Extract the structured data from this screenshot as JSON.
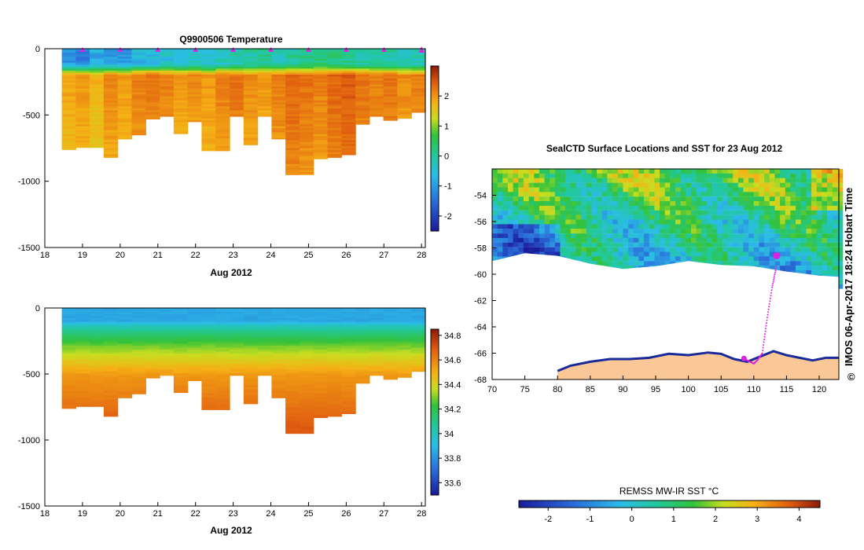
{
  "chart_data": [
    {
      "id": "temperature",
      "type": "heatmap",
      "title": "Q9900506  Temperature",
      "xlabel": "Aug 2012",
      "ylabel": "",
      "xlim": [
        18,
        28.1
      ],
      "ylim": [
        0,
        -1500
      ],
      "x_ticks": [
        "18",
        "19",
        "20",
        "21",
        "22",
        "23",
        "24",
        "25",
        "26",
        "27",
        "28"
      ],
      "y_ticks": [
        "0",
        "-500",
        "-1000",
        "-1500"
      ],
      "colorbar": {
        "range": [
          -2.5,
          3
        ],
        "ticks": [
          "-2",
          "-1",
          "0",
          "1",
          "2"
        ]
      },
      "profile_markers_x": [
        19,
        20,
        21,
        22,
        23,
        24,
        25,
        26,
        27,
        28
      ],
      "profiles": {
        "x_start": 18.45,
        "x_end": 28.1,
        "max_depth_m": [
          760,
          745,
          745,
          820,
          680,
          650,
          530,
          510,
          640,
          550,
          770,
          770,
          510,
          725,
          510,
          680,
          950,
          950,
          830,
          820,
          800,
          570,
          510,
          540,
          525,
          480
        ],
        "surface_temp_c": [
          -1.0,
          -1.2,
          -0.8,
          -0.9,
          -1.0,
          -0.7,
          -0.6,
          -0.5,
          -0.4,
          -0.3,
          -0.5,
          -0.3,
          -0.2,
          -0.1,
          0.1,
          -0.2,
          0.0,
          0.1,
          0.3,
          0.2,
          0.1,
          0.0,
          -0.1,
          -0.1,
          -0.2,
          -0.2
        ],
        "deep_temp_c": [
          1.9,
          2.0,
          1.8,
          2.1,
          2.0,
          2.2,
          2.3,
          2.2,
          2.0,
          2.1,
          2.0,
          2.2,
          2.3,
          2.1,
          2.0,
          2.2,
          2.4,
          2.3,
          2.2,
          2.4,
          2.5,
          2.3,
          2.2,
          2.3,
          2.1,
          2.2
        ]
      }
    },
    {
      "id": "salinity",
      "type": "heatmap",
      "title": "",
      "xlabel": "Aug 2012",
      "ylabel": "",
      "xlim": [
        18,
        28.1
      ],
      "ylim": [
        0,
        -1500
      ],
      "x_ticks": [
        "18",
        "19",
        "20",
        "21",
        "22",
        "23",
        "24",
        "25",
        "26",
        "27",
        "28"
      ],
      "y_ticks": [
        "0",
        "-500",
        "-1000",
        "-1500"
      ],
      "colorbar": {
        "range": [
          33.5,
          34.85
        ],
        "ticks": [
          "33.6",
          "33.8",
          "34",
          "34.2",
          "34.4",
          "34.6",
          "34.8"
        ]
      },
      "profiles": {
        "surface_sal": 33.9,
        "deep_sal": 34.72
      }
    },
    {
      "id": "sst_map",
      "type": "heatmap",
      "title": "SealCTD Surface Locations and SST for 23 Aug 2012",
      "xlabel": "",
      "ylabel": "",
      "xlim": [
        70,
        123
      ],
      "ylim": [
        -68,
        -52
      ],
      "x_ticks": [
        "70",
        "75",
        "80",
        "85",
        "90",
        "95",
        "100",
        "105",
        "110",
        "115",
        "120"
      ],
      "y_ticks": [
        "-54",
        "-56",
        "-58",
        "-60",
        "-62",
        "-64",
        "-66",
        "-68"
      ],
      "colorbar": {
        "label": "REMSS MW-IR SST °C",
        "range": [
          -2.7,
          4.5
        ],
        "ticks": [
          "-2",
          "-1",
          "0",
          "1",
          "2",
          "3",
          "4"
        ]
      },
      "track": {
        "lon": [
          108.5,
          109.2,
          110.0,
          110.6,
          111.3,
          112.0,
          112.8,
          113.5
        ],
        "lat": [
          -66.4,
          -66.6,
          -66.8,
          -66.5,
          -66.0,
          -63.5,
          -61.0,
          -59.3
        ],
        "highlight_lon": 113.5,
        "highlight_lat": -58.6
      },
      "credit": "IMOS 06-Apr-2017 18:24 Hobart Time",
      "copyright_symbol": "©"
    }
  ]
}
